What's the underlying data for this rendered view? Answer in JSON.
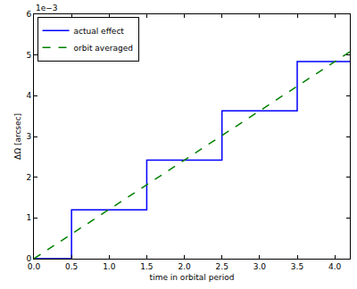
{
  "chart_data": {
    "type": "line",
    "x_label": "time in orbital period",
    "y_label": "ΔΩ [arcsec]",
    "annotations": [
      {
        "text": "1e−3"
      }
    ],
    "xlim": [
      0,
      4.2
    ],
    "ylim": [
      0,
      6
    ],
    "xticks": [
      {
        "value": 0,
        "label": "0.0"
      },
      0.5,
      {
        "value": 1,
        "label": "1.0"
      },
      1.5,
      {
        "value": 2,
        "label": "2.0"
      },
      2.5,
      {
        "value": 3,
        "label": "3.0"
      },
      3.5,
      {
        "value": 4,
        "label": "4.0"
      }
    ],
    "yticks": [
      0,
      1,
      2,
      3,
      4,
      5,
      6
    ],
    "grid": false,
    "legend": "upper left",
    "series": [
      {
        "name": "actual effect",
        "color": "#0000ff",
        "line_style": "step",
        "x": [
          0,
          0.5,
          1.5,
          2.5,
          3.5,
          4.2
        ],
        "values": [
          0,
          1.2,
          2.42,
          3.63,
          4.84,
          4.84
        ]
      },
      {
        "name": "orbit averaged",
        "color": "#008000",
        "line_style": "dashed",
        "x": [
          0,
          4.2
        ],
        "values": [
          0,
          5.08
        ]
      }
    ]
  }
}
